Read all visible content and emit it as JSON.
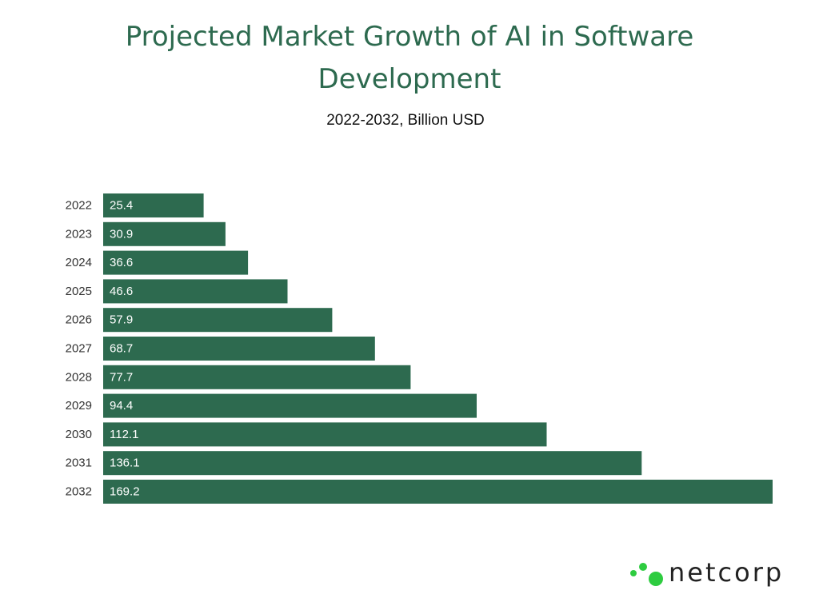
{
  "title": "Projected Market Growth of AI in Software Development",
  "subtitle": "2022-2032, Billion USD",
  "brand": {
    "name": "netcorp",
    "logo_icon": "three-dots-icon",
    "logo_color": "#2ecc40"
  },
  "colors": {
    "title": "#2d6a4f",
    "bar": "#2d6a4f",
    "value_label": "#ffffff"
  },
  "chart_data": {
    "type": "bar",
    "orientation": "horizontal",
    "categories": [
      "2022",
      "2023",
      "2024",
      "2025",
      "2026",
      "2027",
      "2028",
      "2029",
      "2030",
      "2031",
      "2032"
    ],
    "values": [
      25.4,
      30.9,
      36.6,
      46.6,
      57.9,
      68.7,
      77.7,
      94.4,
      112.1,
      136.1,
      169.2
    ],
    "value_labels": [
      "25.4",
      "30.9",
      "36.6",
      "46.6",
      "57.9",
      "68.7",
      "77.7",
      "94.4",
      "112.1",
      "136.1",
      "169.2"
    ],
    "title": "Projected Market Growth of AI in Software Development",
    "subtitle": "2022-2032, Billion USD",
    "xlabel": "",
    "ylabel": "",
    "xlim": [
      0,
      169.2
    ],
    "grid": false,
    "legend": "none"
  }
}
